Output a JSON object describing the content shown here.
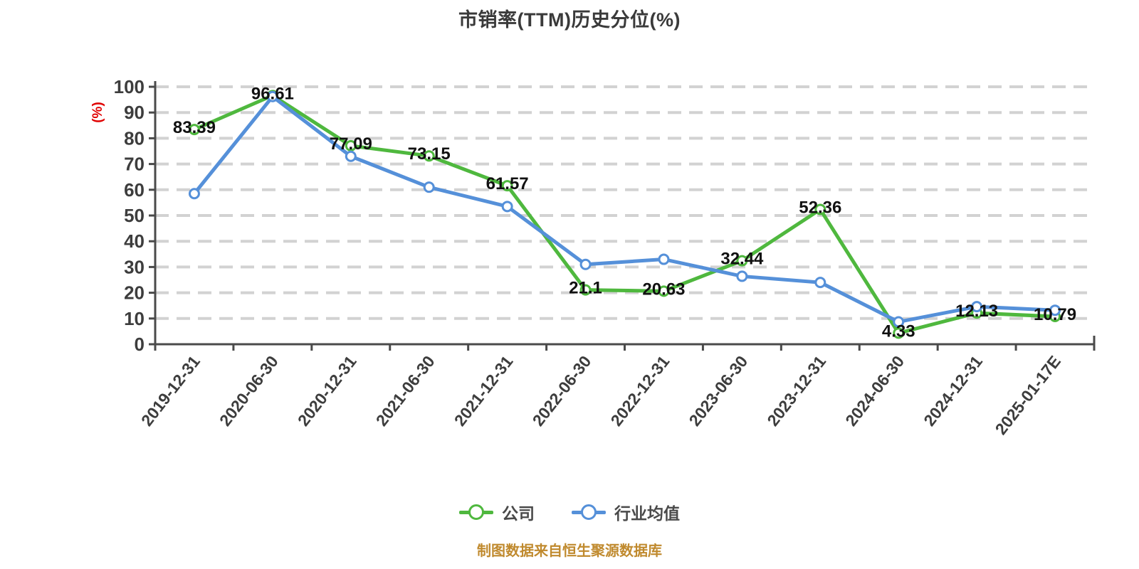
{
  "title": "市销率(TTM)历史分位(%)",
  "y_axis_unit": "(%)",
  "footer": {
    "source_note": "制图数据来自恒生聚源数据库"
  },
  "legend": {
    "position": "bottom-center",
    "items": [
      {
        "label": "公司",
        "color": "#4FB83E"
      },
      {
        "label": "行业均值",
        "color": "#5590D9"
      }
    ]
  },
  "colors": {
    "company_line": "#4FB83E",
    "industry_line": "#5590D9",
    "grid": "#D2D2D2",
    "axis": "#4A4A4A",
    "tick_text": "#3D3D3D",
    "data_label": "#111111",
    "title_text": "#3A3A3A",
    "y_unit_text": "#E00000",
    "source_text": "#C08A2E",
    "marker_fill": "#FFFFFF"
  },
  "chart_data": {
    "type": "line",
    "title": "市销率(TTM)历史分位(%)",
    "xlabel": "",
    "ylabel": "(%)",
    "ylim": [
      0,
      100
    ],
    "y_ticks": [
      0,
      10,
      20,
      30,
      40,
      50,
      60,
      70,
      80,
      90,
      100
    ],
    "grid": "horizontal-dashed",
    "legend_position": "bottom-center",
    "categories": [
      "2019-12-31",
      "2020-06-30",
      "2020-12-31",
      "2021-06-30",
      "2021-12-31",
      "2022-06-30",
      "2022-12-31",
      "2023-06-30",
      "2023-12-31",
      "2024-06-30",
      "2024-12-31",
      "2025-01-17E"
    ],
    "series": [
      {
        "name": "公司",
        "color": "#4FB83E",
        "values": [
          83.39,
          96.61,
          77.09,
          73.15,
          61.57,
          21.1,
          20.63,
          32.44,
          52.36,
          4.33,
          12.13,
          10.79
        ],
        "point_labels": [
          "83.39",
          "96.61",
          "77.09",
          "73.15",
          "61.57",
          "21.1",
          "20.63",
          "32.44",
          "52.36",
          "4.33",
          "12.13",
          "10.79"
        ],
        "labels_visible": true
      },
      {
        "name": "行业均值",
        "color": "#5590D9",
        "values": [
          58.5,
          96.2,
          73.0,
          61.0,
          53.5,
          31.0,
          33.0,
          26.4,
          24.0,
          8.7,
          14.6,
          13.2
        ],
        "point_labels": [],
        "labels_visible": false
      }
    ]
  }
}
